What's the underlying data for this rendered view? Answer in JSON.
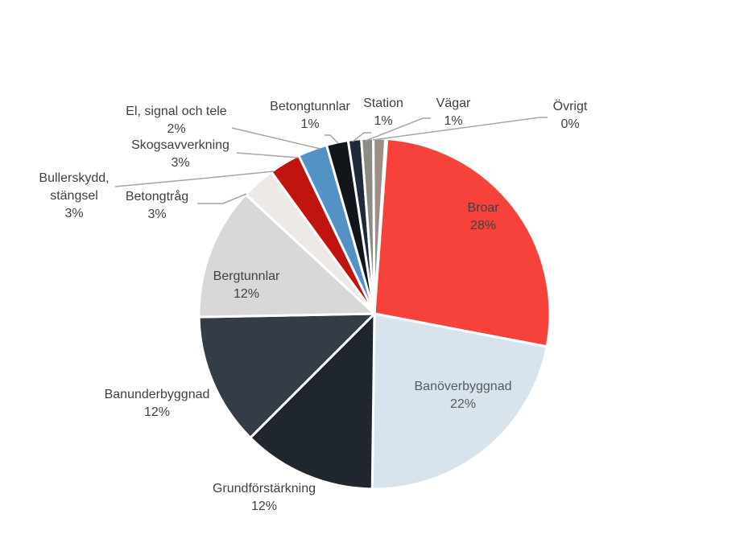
{
  "chart_data": {
    "type": "pie",
    "title": "",
    "slices": [
      {
        "label": "Broar",
        "value": 28,
        "display": "28%",
        "color": "#f6423a"
      },
      {
        "label": "Banöverbyggnad",
        "value": 22,
        "display": "22%",
        "color": "#d7e4ee"
      },
      {
        "label": "Grundförstärkning",
        "value": 12,
        "display": "12%",
        "color": "#20262e"
      },
      {
        "label": "Banunderbyggnad",
        "value": 12,
        "display": "12%",
        "color": "#333c47"
      },
      {
        "label": "Bergtunnlar",
        "value": 12,
        "display": "12%",
        "color": "#d9d8d6"
      },
      {
        "label": "Betongtråg",
        "value": 3,
        "display": "3%",
        "color": "#ece9e7"
      },
      {
        "label": "Bullerskydd, stängsel",
        "value": 3,
        "display": "3%",
        "color": "#c0140e"
      },
      {
        "label": "Skogsavverkning",
        "value": 3,
        "display": "3%",
        "color": "#5292c5"
      },
      {
        "label": "El, signal och tele",
        "value": 2,
        "display": "2%",
        "color": "#121519"
      },
      {
        "label": "Betongtunnlar",
        "value": 1,
        "display": "1%",
        "color": "#1e2a38"
      },
      {
        "label": "Station",
        "value": 1,
        "display": "1%",
        "color": "#8c8b84"
      },
      {
        "label": "Vägar",
        "value": 1,
        "display": "1%",
        "color": "#9b8f86"
      },
      {
        "label": "Övrigt",
        "value": 0,
        "display": "0%",
        "color": "#c7c2bd"
      }
    ]
  }
}
